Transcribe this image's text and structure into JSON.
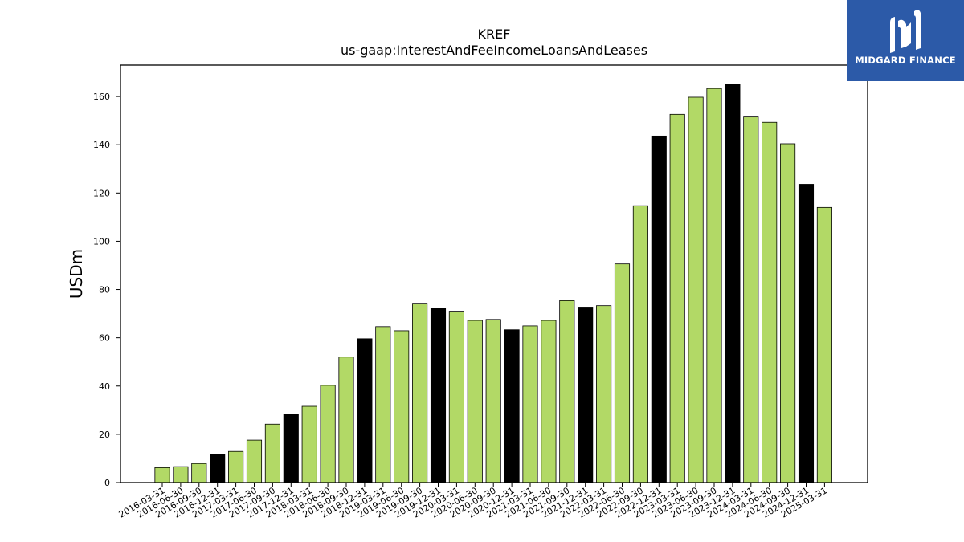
{
  "logo": {
    "text": "MIDGARD FINANCE",
    "icon": "midgard-logo-icon",
    "bg_color": "#2c5aa8"
  },
  "chart_data": {
    "type": "bar",
    "title": "KREF",
    "subtitle": "us-gaap:InterestAndFeeIncomeLoansAndLeases",
    "xlabel": "",
    "ylabel": "USDm",
    "ylim": [
      0,
      173
    ],
    "yticks": [
      0,
      20,
      40,
      60,
      80,
      100,
      120,
      140,
      160
    ],
    "grid": false,
    "colors": {
      "quarter_bar": "#b2d966",
      "year_end_bar": "#000000",
      "edge": "#000000"
    },
    "categories": [
      "2016-03-31",
      "2016-06-30",
      "2016-09-30",
      "2016-12-31",
      "2017-03-31",
      "2017-06-30",
      "2017-09-30",
      "2017-12-31",
      "2018-03-31",
      "2018-06-30",
      "2018-09-30",
      "2018-12-31",
      "2019-03-31",
      "2019-06-30",
      "2019-09-30",
      "2019-12-31",
      "2020-03-31",
      "2020-06-30",
      "2020-09-30",
      "2020-12-31",
      "2021-03-31",
      "2021-06-30",
      "2021-09-30",
      "2021-12-31",
      "2022-03-31",
      "2022-06-30",
      "2022-09-30",
      "2022-12-31",
      "2023-03-31",
      "2023-06-30",
      "2023-09-30",
      "2023-12-31",
      "2024-03-31",
      "2024-06-30",
      "2024-09-30",
      "2024-12-31",
      "2025-03-31"
    ],
    "values": [
      6.2,
      6.6,
      7.9,
      11.8,
      12.9,
      17.6,
      24.2,
      28.2,
      31.6,
      40.3,
      52.0,
      59.6,
      64.6,
      62.9,
      74.3,
      72.3,
      71.0,
      67.2,
      67.6,
      63.3,
      64.9,
      67.2,
      75.4,
      72.7,
      73.3,
      90.6,
      114.7,
      143.6,
      152.6,
      159.7,
      163.3,
      164.9,
      151.5,
      149.3,
      140.4,
      123.6,
      114.0
    ],
    "highlight": [
      false,
      false,
      false,
      true,
      false,
      false,
      false,
      true,
      false,
      false,
      false,
      true,
      false,
      false,
      false,
      true,
      false,
      false,
      false,
      true,
      false,
      false,
      false,
      true,
      false,
      false,
      false,
      true,
      false,
      false,
      false,
      true,
      false,
      false,
      false,
      true,
      false
    ]
  }
}
